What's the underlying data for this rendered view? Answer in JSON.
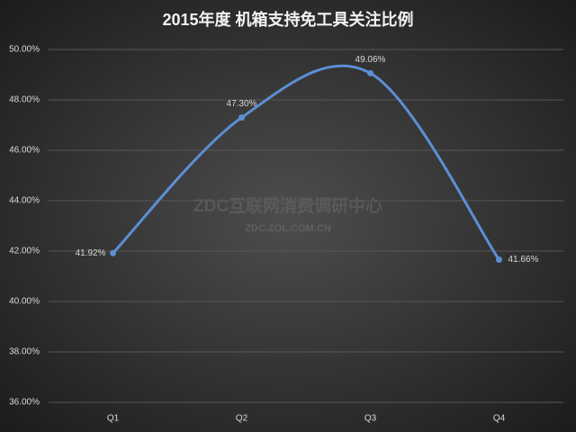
{
  "chart_data": {
    "type": "line",
    "title": "2015年度 机箱支持免工具关注比例",
    "categories": [
      "Q1",
      "Q2",
      "Q3",
      "Q4"
    ],
    "values": [
      41.92,
      47.3,
      49.06,
      41.66
    ],
    "value_labels": [
      "41.92%",
      "47.30%",
      "49.06%",
      "41.66%"
    ],
    "color": "#5b8fd4",
    "ylim": [
      36,
      50
    ],
    "yticks": [
      {
        "value": 36,
        "label": "36.00%"
      },
      {
        "value": 38,
        "label": "38.00%"
      },
      {
        "value": 40,
        "label": "40.00%"
      },
      {
        "value": 42,
        "label": "42.00%"
      },
      {
        "value": 44,
        "label": "44.00%"
      },
      {
        "value": 46,
        "label": "46.00%"
      },
      {
        "value": 48,
        "label": "48.00%"
      },
      {
        "value": 50,
        "label": "50.00%"
      }
    ],
    "grid": true,
    "watermark": [
      "ZDC互联网消费调研中心",
      "ZDC.ZOL.COM.CN"
    ]
  }
}
